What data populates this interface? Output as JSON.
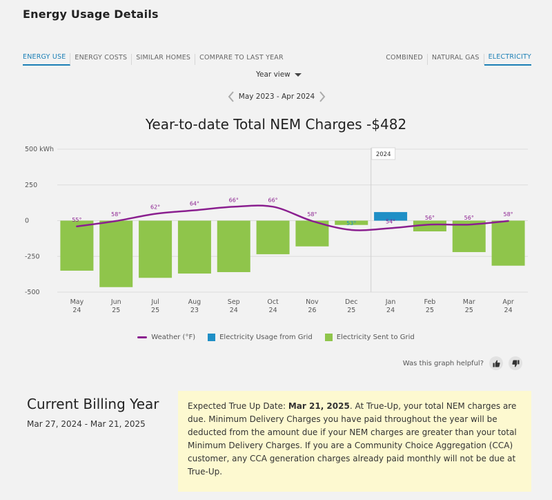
{
  "header": {
    "title": "Energy Usage Details"
  },
  "tabs_left": [
    {
      "label": "ENERGY USE",
      "active": true
    },
    {
      "label": "ENERGY COSTS",
      "active": false
    },
    {
      "label": "SIMILAR HOMES",
      "active": false
    },
    {
      "label": "COMPARE TO LAST YEAR",
      "active": false
    }
  ],
  "tabs_right": [
    {
      "label": "COMBINED",
      "active": false
    },
    {
      "label": "NATURAL GAS",
      "active": false
    },
    {
      "label": "ELECTRICITY",
      "active": true
    }
  ],
  "view_selector": {
    "label": "Year view"
  },
  "period": {
    "label": "May 2023 - Apr 2024"
  },
  "chart_title": "Year-to-date Total NEM Charges -$482",
  "chart_data": {
    "type": "bar",
    "ylim": [
      -500,
      500
    ],
    "yticks": [
      {
        "value": 500,
        "label": "500 kWh"
      },
      {
        "value": 250,
        "label": "250"
      },
      {
        "value": 0,
        "label": "0"
      },
      {
        "value": -250,
        "label": "-250"
      },
      {
        "value": -500,
        "label": "-500"
      }
    ],
    "grid": true,
    "year_marker": {
      "label": "2024",
      "after_index": 7
    },
    "categories": [
      {
        "month": "May",
        "day": "24"
      },
      {
        "month": "Jun",
        "day": "25"
      },
      {
        "month": "Jul",
        "day": "25"
      },
      {
        "month": "Aug",
        "day": "23"
      },
      {
        "month": "Sep",
        "day": "24"
      },
      {
        "month": "Oct",
        "day": "24"
      },
      {
        "month": "Nov",
        "day": "26"
      },
      {
        "month": "Dec",
        "day": "25"
      },
      {
        "month": "Jan",
        "day": "24"
      },
      {
        "month": "Feb",
        "day": "25"
      },
      {
        "month": "Mar",
        "day": "25"
      },
      {
        "month": "Apr",
        "day": "24"
      }
    ],
    "series": [
      {
        "name": "Electricity Usage from Grid",
        "color": "#1f8fc6",
        "values": [
          0,
          0,
          0,
          0,
          0,
          0,
          0,
          0,
          60,
          0,
          0,
          0
        ]
      },
      {
        "name": "Electricity Sent to Grid",
        "color": "#8fc54b",
        "values": [
          -350,
          -465,
          -400,
          -370,
          -360,
          -235,
          -180,
          -30,
          0,
          -75,
          -220,
          -315
        ]
      },
      {
        "name": "Weather (°F)",
        "color": "#8a1f8f",
        "type": "line",
        "labels": [
          "55°",
          "58°",
          "62°",
          "64°",
          "66°",
          "66°",
          "58°",
          "53°",
          "54°",
          "56°",
          "56°",
          "58°"
        ],
        "values": [
          55,
          58,
          62,
          64,
          66,
          66,
          58,
          53,
          54,
          56,
          56,
          58
        ]
      }
    ],
    "legend_position": "bottom"
  },
  "legend": [
    {
      "label": "Weather (°F)"
    },
    {
      "label": "Electricity Usage from Grid"
    },
    {
      "label": "Electricity Sent to Grid"
    }
  ],
  "feedback": {
    "question": "Was this graph helpful?"
  },
  "billing": {
    "title": "Current Billing Year",
    "dates": "Mar 27, 2024 - Mar 21, 2025",
    "info_prefix": "Expected True Up Date: ",
    "info_date": "Mar 21, 2025",
    "info_text": ". At True-Up, your total NEM charges are due. Minimum Delivery Charges you have paid throughout the year will be deducted from the amount due if your NEM charges are greater than your total Minimum Delivery Charges. If you are a Community Choice Aggregation (CCA) customer, any CCA generation charges already paid monthly will not be due at True-Up."
  },
  "colors": {
    "accent": "#1b7fb6",
    "weather_line": "#8a1f8f",
    "sent_bar": "#8fc54b",
    "usage_bar": "#1f8fc6",
    "info_bg": "#fdf9d0"
  }
}
